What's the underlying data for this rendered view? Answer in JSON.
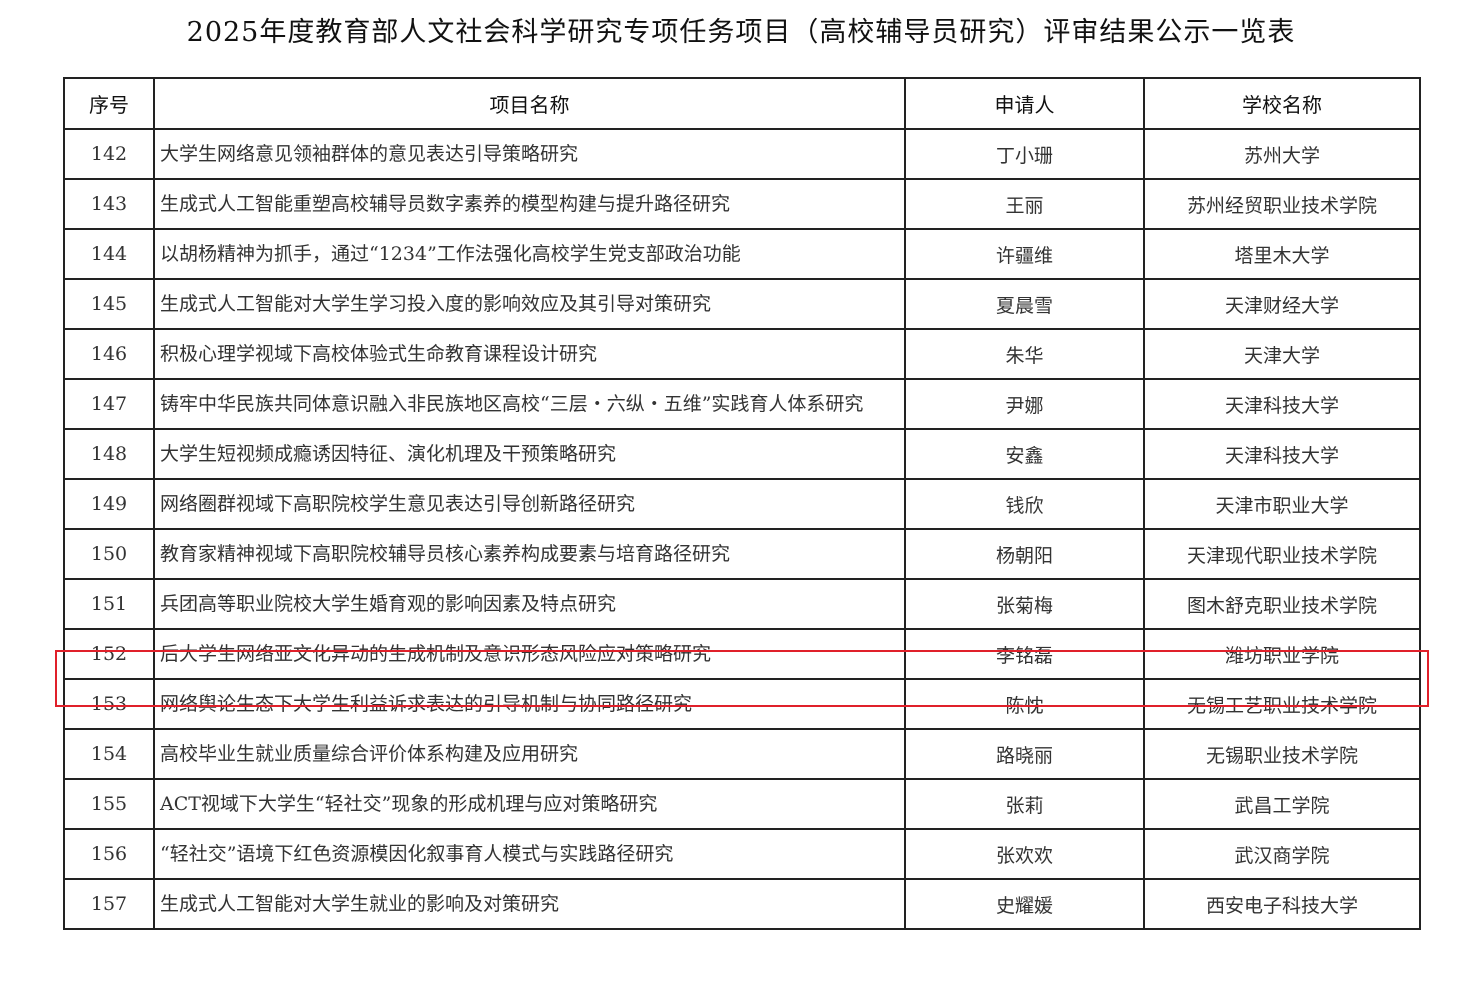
{
  "title": "2025年度教育部人文社会科学研究专项任务项目（高校辅导员研究）评审结果公示一览表",
  "headers": [
    "序号",
    "项目名称",
    "申请人",
    "学校名称"
  ],
  "highlight_color": "#e0202a",
  "highlighted_row": "152",
  "rows": [
    [
      "142",
      "大学生网络意见领袖群体的意见表达引导策略研究",
      "丁小珊",
      "苏州大学"
    ],
    [
      "143",
      "生成式人工智能重塑高校辅导员数字素养的模型构建与提升路径研究",
      "王丽",
      "苏州经贸职业技术学院"
    ],
    [
      "144",
      "以胡杨精神为抓手，通过“1234”工作法强化高校学生党支部政治功能",
      "许疆维",
      "塔里木大学"
    ],
    [
      "145",
      "生成式人工智能对大学生学习投入度的影响效应及其引导对策研究",
      "夏晨雪",
      "天津财经大学"
    ],
    [
      "146",
      "积极心理学视域下高校体验式生命教育课程设计研究",
      "朱华",
      "天津大学"
    ],
    [
      "147",
      "铸牢中华民族共同体意识融入非民族地区高校“三层・六纵・五维”实践育人体系研究",
      "尹娜",
      "天津科技大学"
    ],
    [
      "148",
      "大学生短视频成瘾诱因特征、演化机理及干预策略研究",
      "安鑫",
      "天津科技大学"
    ],
    [
      "149",
      "网络圈群视域下高职院校学生意见表达引导创新路径研究",
      "钱欣",
      "天津市职业大学"
    ],
    [
      "150",
      "教育家精神视域下高职院校辅导员核心素养构成要素与培育路径研究",
      "杨朝阳",
      "天津现代职业技术学院"
    ],
    [
      "151",
      "兵团高等职业院校大学生婚育观的影响因素及特点研究",
      "张菊梅",
      "图木舒克职业技术学院"
    ],
    [
      "152",
      "后大学生网络亚文化异动的生成机制及意识形态风险应对策略研究",
      "李铭磊",
      "潍坊职业学院"
    ],
    [
      "153",
      "网络舆论生态下大学生利益诉求表达的引导机制与协同路径研究",
      "陈忱",
      "无锡工艺职业技术学院"
    ],
    [
      "154",
      "高校毕业生就业质量综合评价体系构建及应用研究",
      "路晓丽",
      "无锡职业技术学院"
    ],
    [
      "155",
      "ACT视域下大学生“轻社交”现象的形成机理与应对策略研究",
      "张莉",
      "武昌工学院"
    ],
    [
      "156",
      "“轻社交”语境下红色资源模因化叙事育人模式与实践路径研究",
      "张欢欢",
      "武汉商学院"
    ],
    [
      "157",
      "生成式人工智能对大学生就业的影响及对策研究",
      "史耀媛",
      "西安电子科技大学"
    ]
  ]
}
